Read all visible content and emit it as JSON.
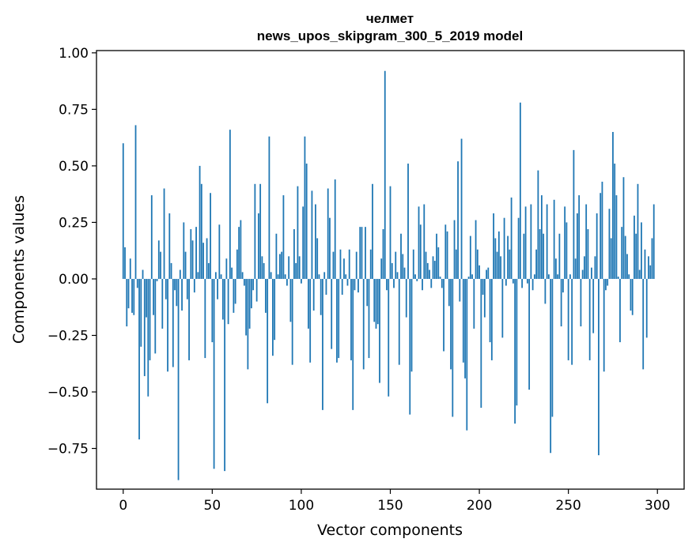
{
  "chart_data": {
    "type": "bar",
    "title": "челмет",
    "subtitle": "news_upos_skipgram_300_5_2019 model",
    "xlabel": "Vector components",
    "ylabel": "Components values",
    "xlim": [
      -15,
      315
    ],
    "ylim": [
      -0.93,
      1.01
    ],
    "xticks": [
      0,
      50,
      100,
      150,
      200,
      250,
      300
    ],
    "yticks": [
      -0.75,
      -0.5,
      -0.25,
      0.0,
      0.25,
      0.5,
      0.75,
      1.0
    ],
    "ytick_labels": [
      "−0.75",
      "−0.50",
      "−0.25",
      "0.00",
      "0.25",
      "0.50",
      "0.75",
      "1.00"
    ],
    "xtick_labels": [
      "0",
      "50",
      "100",
      "150",
      "200",
      "250",
      "300"
    ],
    "bar_color": "#1f77b4",
    "values": [
      0.6,
      0.14,
      -0.21,
      -0.13,
      0.09,
      -0.15,
      -0.16,
      0.68,
      -0.04,
      -0.71,
      -0.3,
      0.04,
      -0.43,
      -0.17,
      -0.52,
      -0.36,
      0.37,
      -0.16,
      -0.33,
      -0.01,
      0.17,
      0.12,
      -0.22,
      0.4,
      -0.09,
      -0.41,
      0.29,
      0.07,
      -0.39,
      -0.05,
      -0.12,
      -0.89,
      0.04,
      -0.14,
      0.25,
      0.12,
      -0.09,
      -0.36,
      0.22,
      0.17,
      -0.06,
      0.23,
      0.03,
      0.5,
      0.42,
      0.16,
      -0.35,
      0.18,
      0.07,
      0.38,
      -0.28,
      -0.84,
      0.03,
      -0.09,
      0.24,
      0.02,
      -0.18,
      -0.85,
      0.09,
      -0.2,
      0.66,
      0.05,
      -0.15,
      -0.11,
      0.13,
      0.23,
      0.26,
      0.03,
      -0.03,
      -0.25,
      -0.4,
      -0.22,
      -0.13,
      -0.05,
      0.42,
      -0.1,
      0.29,
      0.42,
      0.1,
      0.07,
      -0.15,
      -0.55,
      0.63,
      0.03,
      -0.34,
      -0.27,
      0.2,
      0.02,
      0.11,
      0.12,
      0.37,
      0.02,
      -0.03,
      0.1,
      -0.19,
      -0.38,
      0.22,
      0.07,
      0.41,
      0.1,
      -0.02,
      0.32,
      0.63,
      0.51,
      -0.22,
      -0.37,
      0.39,
      -0.14,
      0.33,
      0.18,
      0.02,
      -0.16,
      -0.58,
      0.03,
      -0.07,
      0.4,
      0.27,
      -0.31,
      0.12,
      0.44,
      -0.37,
      -0.35,
      0.13,
      -0.07,
      0.09,
      0.02,
      -0.03,
      0.13,
      -0.36,
      -0.58,
      -0.05,
      0.12,
      -0.06,
      0.23,
      0.23,
      -0.4,
      0.23,
      -0.12,
      -0.35,
      0.13,
      0.42,
      -0.19,
      -0.22,
      -0.2,
      -0.46,
      0.09,
      0.22,
      0.92,
      -0.05,
      -0.52,
      0.41,
      0.07,
      -0.04,
      0.12,
      0.03,
      -0.38,
      0.2,
      0.11,
      0.05,
      -0.17,
      0.51,
      -0.6,
      -0.41,
      0.13,
      0.02,
      -0.01,
      0.32,
      0.24,
      -0.05,
      0.33,
      0.12,
      0.07,
      0.04,
      -0.04,
      0.1,
      0.08,
      0.2,
      0.14,
      0.01,
      -0.04,
      -0.32,
      0.24,
      0.21,
      -0.12,
      -0.4,
      -0.61,
      0.26,
      0.13,
      0.52,
      -0.1,
      0.62,
      -0.37,
      -0.44,
      -0.67,
      0.01,
      0.19,
      0.02,
      -0.22,
      0.26,
      0.13,
      0.06,
      -0.57,
      -0.07,
      -0.17,
      0.04,
      0.05,
      -0.28,
      -0.36,
      0.29,
      0.18,
      0.12,
      0.21,
      0.1,
      -0.26,
      0.27,
      -0.03,
      0.19,
      0.13,
      0.36,
      -0.02,
      -0.64,
      -0.56,
      0.27,
      0.78,
      -0.04,
      0.2,
      0.32,
      -0.02,
      -0.49,
      0.33,
      -0.05,
      0.02,
      0.13,
      0.48,
      0.22,
      0.37,
      0.2,
      -0.11,
      0.33,
      0.02,
      -0.77,
      -0.61,
      0.35,
      0.09,
      0.02,
      0.2,
      -0.21,
      -0.06,
      0.32,
      0.25,
      -0.36,
      0.02,
      -0.38,
      0.57,
      0.09,
      0.29,
      0.37,
      -0.21,
      0.04,
      0.1,
      0.33,
      0.22,
      -0.36,
      0.05,
      -0.24,
      0.1,
      0.29,
      -0.78,
      0.38,
      0.43,
      -0.41,
      -0.05,
      -0.03,
      0.31,
      0.18,
      0.65,
      0.51,
      0.37,
      0.01,
      -0.28,
      0.23,
      0.45,
      0.19,
      0.11,
      0.02,
      -0.14,
      -0.16,
      0.28,
      0.2,
      0.42,
      0.04,
      0.25,
      -0.4,
      0.13,
      -0.26,
      0.1,
      0.06,
      0.18,
      0.33
    ]
  }
}
